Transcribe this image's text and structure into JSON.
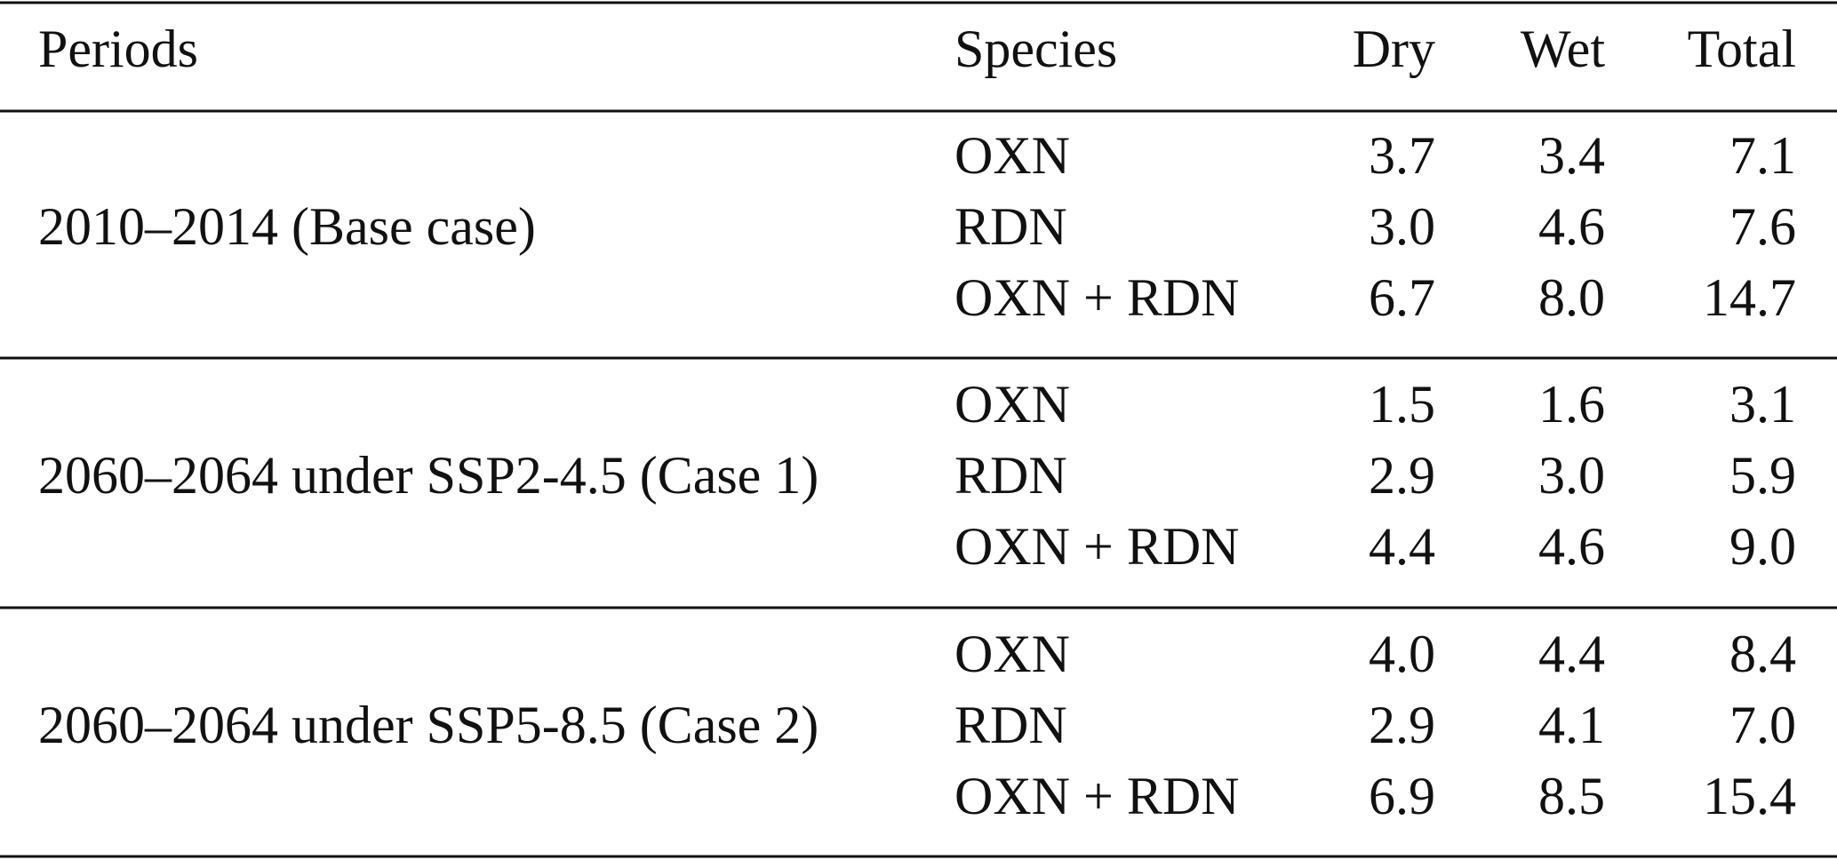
{
  "table": {
    "header": [
      "Periods",
      "Species",
      "Dry",
      "Wet",
      "Total"
    ],
    "groups": [
      {
        "period": "2010–2014 (Base case)",
        "rows": [
          [
            "OXN",
            "3.7",
            "3.4",
            "7.1"
          ],
          [
            "RDN",
            "3.0",
            "4.6",
            "7.6"
          ],
          [
            "OXN + RDN",
            "6.7",
            "8.0",
            "14.7"
          ]
        ]
      },
      {
        "period": "2060–2064 under SSP2-4.5 (Case 1)",
        "rows": [
          [
            "OXN",
            "1.5",
            "1.6",
            "3.1"
          ],
          [
            "RDN",
            "2.9",
            "3.0",
            "5.9"
          ],
          [
            "OXN + RDN",
            "4.4",
            "4.6",
            "9.0"
          ]
        ]
      },
      {
        "period": "2060–2064 under SSP5-8.5 (Case 2)",
        "rows": [
          [
            "OXN",
            "4.0",
            "4.4",
            "8.4"
          ],
          [
            "RDN",
            "2.9",
            "4.1",
            "7.0"
          ],
          [
            "OXN + RDN",
            "6.9",
            "8.5",
            "15.4"
          ]
        ]
      }
    ]
  }
}
